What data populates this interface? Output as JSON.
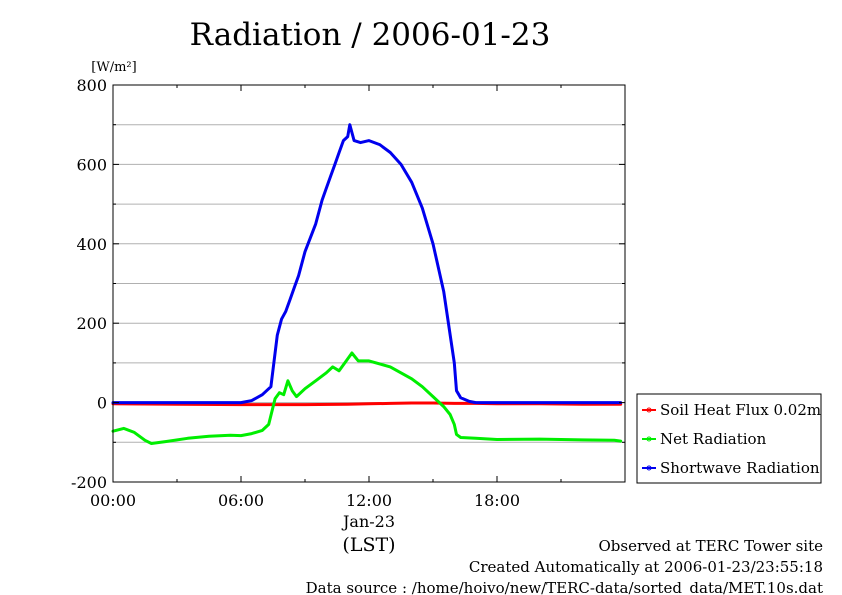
{
  "chart_data": {
    "type": "line",
    "title": "Radiation / 2006-01-23",
    "ylabel": "[W/m²]",
    "ylim": [
      -200,
      800
    ],
    "xlim": [
      0,
      24
    ],
    "yticks": [
      {
        "value": -200,
        "label": "-200"
      },
      {
        "value": 0,
        "label": "0"
      },
      {
        "value": 200,
        "label": "200"
      },
      {
        "value": 400,
        "label": "400"
      },
      {
        "value": 600,
        "label": "600"
      },
      {
        "value": 800,
        "label": "800"
      }
    ],
    "xticks": [
      {
        "value": 0,
        "label": "00:00"
      },
      {
        "value": 6,
        "label": "06:00"
      },
      {
        "value": 12,
        "label": "12:00"
      },
      {
        "value": 18,
        "label": "18:00"
      }
    ],
    "xsublabel": "Jan-23",
    "xlabel": "(LST)",
    "grid": true,
    "legend_position": "right",
    "series": [
      {
        "name": "Soil Heat Flux 0.02m",
        "color": "#ff0000",
        "x": [
          0,
          3,
          6,
          9,
          11,
          12,
          13,
          14,
          15,
          16,
          17,
          18,
          20,
          22,
          23.8
        ],
        "y": [
          -3,
          -4,
          -5,
          -5,
          -4,
          -3,
          -2,
          -1,
          -1,
          -2,
          -2,
          -3,
          -3,
          -4,
          -4
        ]
      },
      {
        "name": "Net Radiation",
        "color": "#00ee00",
        "x": [
          0,
          0.5,
          1.0,
          1.5,
          1.8,
          2.5,
          3.5,
          4.5,
          5.5,
          6.0,
          6.5,
          7.0,
          7.3,
          7.6,
          7.8,
          8.0,
          8.2,
          8.4,
          8.6,
          9.0,
          9.5,
          10.0,
          10.3,
          10.6,
          11.0,
          11.2,
          11.5,
          12.0,
          13.0,
          14.0,
          14.5,
          15.0,
          15.5,
          15.8,
          16.0,
          16.1,
          16.3,
          17.0,
          18.0,
          20.0,
          22.0,
          23.5,
          23.8
        ],
        "y": [
          -72,
          -65,
          -75,
          -95,
          -103,
          -98,
          -90,
          -85,
          -82,
          -83,
          -78,
          -70,
          -55,
          10,
          25,
          20,
          55,
          30,
          15,
          35,
          55,
          75,
          90,
          80,
          110,
          125,
          105,
          105,
          90,
          60,
          40,
          15,
          -10,
          -30,
          -55,
          -80,
          -88,
          -90,
          -93,
          -92,
          -94,
          -95,
          -97
        ]
      },
      {
        "name": "Shortwave Radiation",
        "color": "#0000ee",
        "x": [
          0,
          6.0,
          6.5,
          7.0,
          7.4,
          7.7,
          7.9,
          8.1,
          8.3,
          8.5,
          8.7,
          9.0,
          9.5,
          9.8,
          10.0,
          10.2,
          10.4,
          10.6,
          10.8,
          11.0,
          11.1,
          11.3,
          11.6,
          12.0,
          12.5,
          13.0,
          13.5,
          14.0,
          14.5,
          15.0,
          15.5,
          16.0,
          16.1,
          16.3,
          16.7,
          17.0,
          18.0,
          20.0,
          22.0,
          23.8
        ],
        "y": [
          0,
          0,
          5,
          20,
          40,
          170,
          210,
          230,
          260,
          290,
          320,
          380,
          450,
          510,
          540,
          570,
          600,
          630,
          660,
          670,
          700,
          660,
          655,
          660,
          650,
          630,
          600,
          555,
          490,
          400,
          280,
          100,
          30,
          12,
          3,
          0,
          0,
          0,
          0,
          0
        ]
      }
    ]
  },
  "footer": {
    "line1": "Observed at TERC Tower site",
    "line2": "Created Automatically at 2006-01-23/23:55:18",
    "line3": "Data source : /home/hoivo/new/TERC-data/sorted_data/MET.10s.dat"
  }
}
